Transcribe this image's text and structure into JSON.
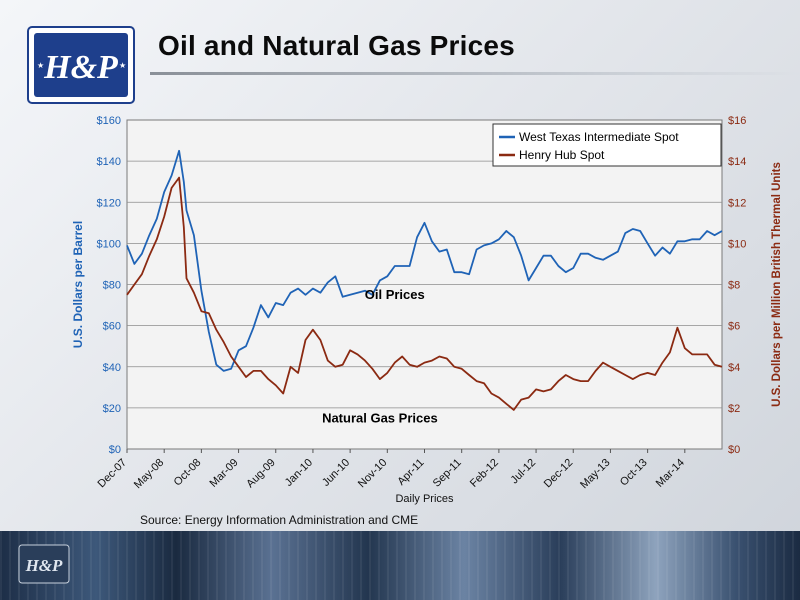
{
  "slide": {
    "title": "Oil and Natural Gas Prices",
    "source": "Source:  Energy Information Administration and CME",
    "logo_text": "H&P"
  },
  "colors": {
    "oil": "#1f63b6",
    "gas": "#8b2a12",
    "title": "#0b0b0b",
    "logo_blue": "#1e3f8c"
  },
  "chart_data": {
    "type": "line",
    "xlabel": "Daily Prices",
    "ylabel_left": "U.S. Dollars per Barrel",
    "ylabel_right": "U.S. Dollars per Million British Thermal Units",
    "xlim": [
      "2007-12",
      "2014-08"
    ],
    "ylim_left": [
      0,
      160
    ],
    "ylim_right": [
      0,
      16
    ],
    "yticks_left": [
      "$0",
      "$20",
      "$40",
      "$60",
      "$80",
      "$100",
      "$120",
      "$140",
      "$160"
    ],
    "yticks_right": [
      "$0",
      "$2",
      "$4",
      "$6",
      "$8",
      "$10",
      "$12",
      "$14",
      "$16"
    ],
    "xticks": [
      "Dec-07",
      "May-08",
      "Oct-08",
      "Mar-09",
      "Aug-09",
      "Jan-10",
      "Jun-10",
      "Nov-10",
      "Apr-11",
      "Sep-11",
      "Feb-12",
      "Jul-12",
      "Dec-12",
      "May-13",
      "Oct-13",
      "Mar-14"
    ],
    "grid": true,
    "legend_position": "top-right",
    "annotations": [
      {
        "text": "Oil Prices",
        "x": "2010-12",
        "y": 73,
        "axis": "left"
      },
      {
        "text": "Natural Gas Prices",
        "x": "2010-10",
        "y": 1.3,
        "axis": "right"
      }
    ],
    "series": [
      {
        "name": "West Texas Intermediate Spot",
        "axis": "left",
        "points": [
          [
            "2007-12",
            99
          ],
          [
            "2008-01",
            90
          ],
          [
            "2008-02",
            95
          ],
          [
            "2008-03",
            104
          ],
          [
            "2008-04",
            112
          ],
          [
            "2008-05",
            125
          ],
          [
            "2008-06",
            133
          ],
          [
            "2008-07",
            145
          ],
          [
            "2008-07-20",
            130
          ],
          [
            "2008-08",
            116
          ],
          [
            "2008-09",
            104
          ],
          [
            "2008-10",
            77
          ],
          [
            "2008-11",
            57
          ],
          [
            "2008-12",
            41
          ],
          [
            "2009-01",
            38
          ],
          [
            "2009-02",
            39
          ],
          [
            "2009-03",
            48
          ],
          [
            "2009-04",
            50
          ],
          [
            "2009-05",
            59
          ],
          [
            "2009-06",
            70
          ],
          [
            "2009-07",
            64
          ],
          [
            "2009-08",
            71
          ],
          [
            "2009-09",
            70
          ],
          [
            "2009-10",
            76
          ],
          [
            "2009-11",
            78
          ],
          [
            "2009-12",
            75
          ],
          [
            "2010-01",
            78
          ],
          [
            "2010-02",
            76
          ],
          [
            "2010-03",
            81
          ],
          [
            "2010-04",
            84
          ],
          [
            "2010-05",
            74
          ],
          [
            "2010-06",
            75
          ],
          [
            "2010-07",
            76
          ],
          [
            "2010-08",
            77
          ],
          [
            "2010-09",
            75
          ],
          [
            "2010-10",
            82
          ],
          [
            "2010-11",
            84
          ],
          [
            "2010-12",
            89
          ],
          [
            "2011-01",
            89
          ],
          [
            "2011-02",
            89
          ],
          [
            "2011-03",
            103
          ],
          [
            "2011-04",
            110
          ],
          [
            "2011-05",
            101
          ],
          [
            "2011-06",
            96
          ],
          [
            "2011-07",
            97
          ],
          [
            "2011-08",
            86
          ],
          [
            "2011-09",
            86
          ],
          [
            "2011-10",
            85
          ],
          [
            "2011-11",
            97
          ],
          [
            "2011-12",
            99
          ],
          [
            "2012-01",
            100
          ],
          [
            "2012-02",
            102
          ],
          [
            "2012-03",
            106
          ],
          [
            "2012-04",
            103
          ],
          [
            "2012-05",
            94
          ],
          [
            "2012-06",
            82
          ],
          [
            "2012-07",
            88
          ],
          [
            "2012-08",
            94
          ],
          [
            "2012-09",
            94
          ],
          [
            "2012-10",
            89
          ],
          [
            "2012-11",
            86
          ],
          [
            "2012-12",
            88
          ],
          [
            "2013-01",
            95
          ],
          [
            "2013-02",
            95
          ],
          [
            "2013-03",
            93
          ],
          [
            "2013-04",
            92
          ],
          [
            "2013-05",
            94
          ],
          [
            "2013-06",
            96
          ],
          [
            "2013-07",
            105
          ],
          [
            "2013-08",
            107
          ],
          [
            "2013-09",
            106
          ],
          [
            "2013-10",
            100
          ],
          [
            "2013-11",
            94
          ],
          [
            "2013-12",
            98
          ],
          [
            "2014-01",
            95
          ],
          [
            "2014-02",
            101
          ],
          [
            "2014-03",
            101
          ],
          [
            "2014-04",
            102
          ],
          [
            "2014-05",
            102
          ],
          [
            "2014-06",
            106
          ],
          [
            "2014-07",
            104
          ],
          [
            "2014-08",
            106
          ]
        ]
      },
      {
        "name": "Henry Hub Spot",
        "axis": "right",
        "points": [
          [
            "2007-12",
            7.5
          ],
          [
            "2008-01",
            8.0
          ],
          [
            "2008-02",
            8.5
          ],
          [
            "2008-03",
            9.4
          ],
          [
            "2008-04",
            10.2
          ],
          [
            "2008-05",
            11.3
          ],
          [
            "2008-06",
            12.7
          ],
          [
            "2008-07",
            13.2
          ],
          [
            "2008-07-20",
            10.8
          ],
          [
            "2008-08",
            8.3
          ],
          [
            "2008-09",
            7.6
          ],
          [
            "2008-10",
            6.7
          ],
          [
            "2008-11",
            6.6
          ],
          [
            "2008-12",
            5.8
          ],
          [
            "2009-01",
            5.2
          ],
          [
            "2009-02",
            4.5
          ],
          [
            "2009-03",
            4.0
          ],
          [
            "2009-04",
            3.5
          ],
          [
            "2009-05",
            3.8
          ],
          [
            "2009-06",
            3.8
          ],
          [
            "2009-07",
            3.4
          ],
          [
            "2009-08",
            3.1
          ],
          [
            "2009-09",
            2.7
          ],
          [
            "2009-10",
            4.0
          ],
          [
            "2009-11",
            3.7
          ],
          [
            "2009-12",
            5.3
          ],
          [
            "2010-01",
            5.8
          ],
          [
            "2010-02",
            5.3
          ],
          [
            "2010-03",
            4.3
          ],
          [
            "2010-04",
            4.0
          ],
          [
            "2010-05",
            4.1
          ],
          [
            "2010-06",
            4.8
          ],
          [
            "2010-07",
            4.6
          ],
          [
            "2010-08",
            4.3
          ],
          [
            "2010-09",
            3.9
          ],
          [
            "2010-10",
            3.4
          ],
          [
            "2010-11",
            3.7
          ],
          [
            "2010-12",
            4.2
          ],
          [
            "2011-01",
            4.5
          ],
          [
            "2011-02",
            4.1
          ],
          [
            "2011-03",
            4.0
          ],
          [
            "2011-04",
            4.2
          ],
          [
            "2011-05",
            4.3
          ],
          [
            "2011-06",
            4.5
          ],
          [
            "2011-07",
            4.4
          ],
          [
            "2011-08",
            4.0
          ],
          [
            "2011-09",
            3.9
          ],
          [
            "2011-10",
            3.6
          ],
          [
            "2011-11",
            3.3
          ],
          [
            "2011-12",
            3.2
          ],
          [
            "2012-01",
            2.7
          ],
          [
            "2012-02",
            2.5
          ],
          [
            "2012-03",
            2.2
          ],
          [
            "2012-04",
            1.9
          ],
          [
            "2012-05",
            2.4
          ],
          [
            "2012-06",
            2.5
          ],
          [
            "2012-07",
            2.9
          ],
          [
            "2012-08",
            2.8
          ],
          [
            "2012-09",
            2.9
          ],
          [
            "2012-10",
            3.3
          ],
          [
            "2012-11",
            3.6
          ],
          [
            "2012-12",
            3.4
          ],
          [
            "2013-01",
            3.3
          ],
          [
            "2013-02",
            3.3
          ],
          [
            "2013-03",
            3.8
          ],
          [
            "2013-04",
            4.2
          ],
          [
            "2013-05",
            4.0
          ],
          [
            "2013-06",
            3.8
          ],
          [
            "2013-07",
            3.6
          ],
          [
            "2013-08",
            3.4
          ],
          [
            "2013-09",
            3.6
          ],
          [
            "2013-10",
            3.7
          ],
          [
            "2013-11",
            3.6
          ],
          [
            "2013-12",
            4.2
          ],
          [
            "2014-01",
            4.7
          ],
          [
            "2014-02",
            5.9
          ],
          [
            "2014-03",
            4.9
          ],
          [
            "2014-04",
            4.6
          ],
          [
            "2014-05",
            4.6
          ],
          [
            "2014-06",
            4.6
          ],
          [
            "2014-07",
            4.1
          ],
          [
            "2014-08",
            4.0
          ]
        ]
      }
    ]
  }
}
